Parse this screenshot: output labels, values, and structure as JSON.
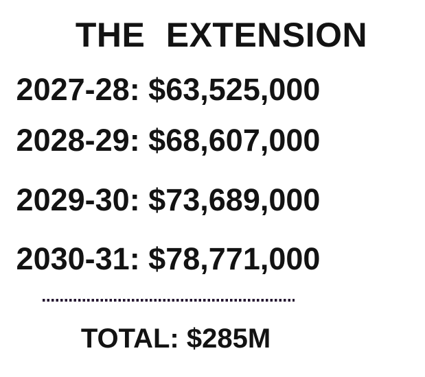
{
  "title": "THE EXTENSION",
  "rows": [
    {
      "period": "2027-28",
      "amount": "$63,525,000",
      "text": "2027-28: $63,525,000"
    },
    {
      "period": "2028-29",
      "amount": "$68,607,000",
      "text": "2028-29: $68,607,000"
    },
    {
      "period": "2029-30",
      "amount": "$73,689,000",
      "text": "2029-30: $73,689,000"
    },
    {
      "period": "2030-31",
      "amount": "$78,771,000",
      "text": "2030-31: $78,771,000"
    }
  ],
  "total": {
    "label": "TOTAL",
    "value": "$285M",
    "text": "TOTAL: $285M"
  },
  "colors": {
    "background": "#ffffff",
    "text": "#131313",
    "divider_dots": "#241530"
  },
  "chart_data": {
    "type": "table",
    "title": "THE EXTENSION",
    "categories": [
      "2027-28",
      "2028-29",
      "2029-30",
      "2030-31"
    ],
    "values": [
      63525000,
      68607000,
      73689000,
      78771000
    ],
    "total_label": "TOTAL",
    "total_value": "$285M",
    "value_format": "USD",
    "grid": false,
    "legend": false
  }
}
